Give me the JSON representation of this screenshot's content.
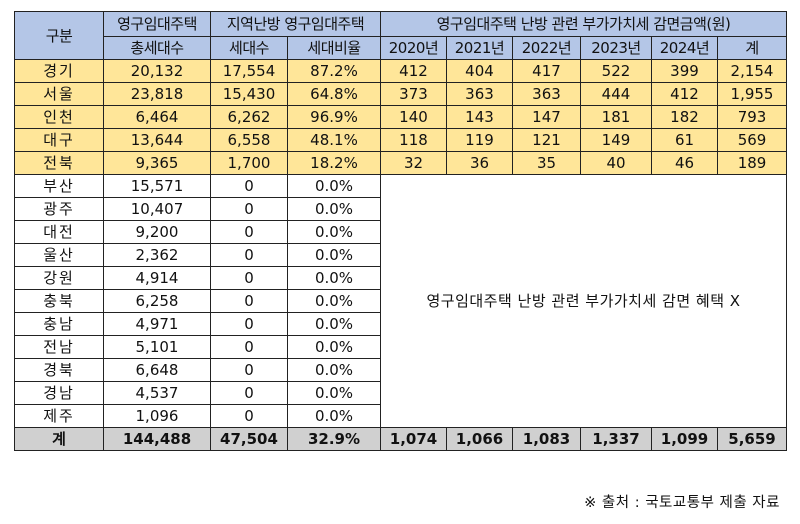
{
  "headers": {
    "region": "구분",
    "total_top": "영구임대주택",
    "total_bottom": "총세대수",
    "heating_group": "지역난방 영구임대주택",
    "heating_households": "세대수",
    "heating_ratio": "세대비율",
    "vat_group": "영구임대주택 난방 관련 부가가치세 감면금액(원)",
    "years": [
      "2020년",
      "2021년",
      "2022년",
      "2023년",
      "2024년"
    ],
    "sum": "계"
  },
  "highlighted_rows": [
    {
      "region": "경기",
      "total": "20,132",
      "hh": "17,554",
      "ratio": "87.2%",
      "vals": [
        "412",
        "404",
        "417",
        "522",
        "399"
      ],
      "sum": "2,154"
    },
    {
      "region": "서울",
      "total": "23,818",
      "hh": "15,430",
      "ratio": "64.8%",
      "vals": [
        "373",
        "363",
        "363",
        "444",
        "412"
      ],
      "sum": "1,955"
    },
    {
      "region": "인천",
      "total": "6,464",
      "hh": "6,262",
      "ratio": "96.9%",
      "vals": [
        "140",
        "143",
        "147",
        "181",
        "182"
      ],
      "sum": "793"
    },
    {
      "region": "대구",
      "total": "13,644",
      "hh": "6,558",
      "ratio": "48.1%",
      "vals": [
        "118",
        "119",
        "121",
        "149",
        "61"
      ],
      "sum": "569"
    },
    {
      "region": "전북",
      "total": "9,365",
      "hh": "1,700",
      "ratio": "18.2%",
      "vals": [
        "32",
        "36",
        "35",
        "40",
        "46"
      ],
      "sum": "189"
    }
  ],
  "plain_rows": [
    {
      "region": "부산",
      "total": "15,571",
      "hh": "0",
      "ratio": "0.0%"
    },
    {
      "region": "광주",
      "total": "10,407",
      "hh": "0",
      "ratio": "0.0%"
    },
    {
      "region": "대전",
      "total": "9,200",
      "hh": "0",
      "ratio": "0.0%"
    },
    {
      "region": "울산",
      "total": "2,362",
      "hh": "0",
      "ratio": "0.0%"
    },
    {
      "region": "강원",
      "total": "4,914",
      "hh": "0",
      "ratio": "0.0%"
    },
    {
      "region": "충북",
      "total": "6,258",
      "hh": "0",
      "ratio": "0.0%"
    },
    {
      "region": "충남",
      "total": "4,971",
      "hh": "0",
      "ratio": "0.0%"
    },
    {
      "region": "전남",
      "total": "5,101",
      "hh": "0",
      "ratio": "0.0%"
    },
    {
      "region": "경북",
      "total": "6,648",
      "hh": "0",
      "ratio": "0.0%"
    },
    {
      "region": "경남",
      "total": "4,537",
      "hh": "0",
      "ratio": "0.0%"
    },
    {
      "region": "제주",
      "total": "1,096",
      "hh": "0",
      "ratio": "0.0%"
    }
  ],
  "no_benefit_note": "영구임대주택 난방 관련 부가가치세 감면 혜택 X",
  "total_row": {
    "label": "계",
    "total": "144,488",
    "hh": "47,504",
    "ratio": "32.9%",
    "vals": [
      "1,074",
      "1,066",
      "1,083",
      "1,337",
      "1,099"
    ],
    "sum": "5,659"
  },
  "source": "※ 출처 : 국토교통부 제출 자료",
  "colors": {
    "header_bg": "#b4c6e7",
    "highlight_bg": "#ffe699",
    "total_bg": "#d0d0d0"
  }
}
